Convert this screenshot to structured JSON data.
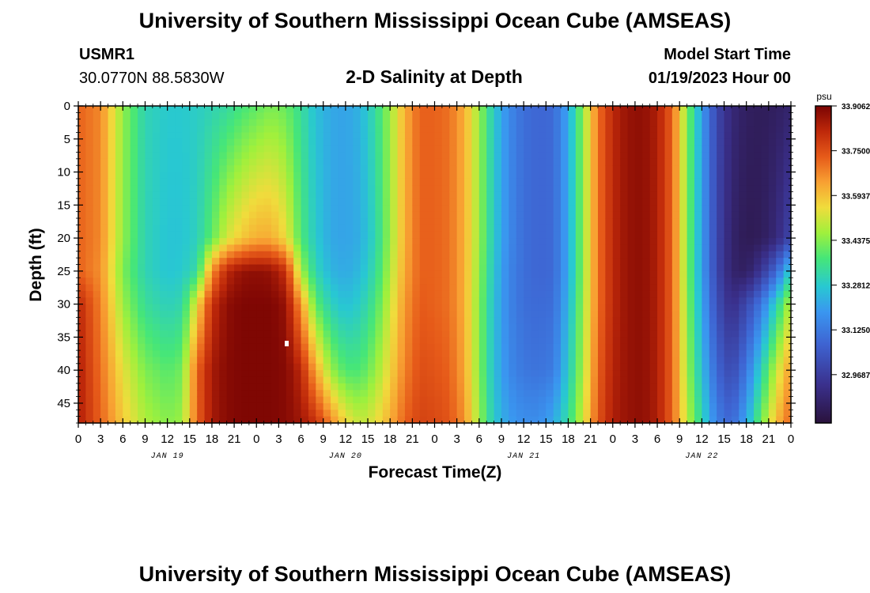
{
  "page": {
    "title": "University of Southern Mississippi Ocean Cube (AMSEAS)",
    "station_id": "USMR1",
    "coordinates": "30.0770N  88.5830W",
    "plot_title": "2-D Salinity at Depth",
    "model_start_label": "Model Start Time",
    "model_start_value": "01/19/2023 Hour 00",
    "footer_title": "University of Southern Mississippi Ocean Cube (AMSEAS)"
  },
  "chart_data": {
    "type": "heatmap",
    "title": "2-D Salinity at Depth",
    "xlabel": "Forecast Time(Z)",
    "ylabel": "Depth (ft)",
    "x_hours_range": [
      0,
      96
    ],
    "ylim": [
      0,
      48
    ],
    "y_ticks": [
      "0",
      "5",
      "10",
      "15",
      "20",
      "25",
      "30",
      "35",
      "40",
      "45"
    ],
    "x_tick_labels": [
      "0",
      "3",
      "6",
      "9",
      "12",
      "15",
      "18",
      "21",
      "0",
      "3",
      "6",
      "9",
      "12",
      "15",
      "18",
      "21",
      "0",
      "3",
      "6",
      "9",
      "12",
      "15",
      "18",
      "21",
      "0",
      "3",
      "6",
      "9",
      "12",
      "15",
      "18",
      "21",
      "0"
    ],
    "day_labels": [
      {
        "label": "JAN 19",
        "hour": 12
      },
      {
        "label": "JAN 20",
        "hour": 36
      },
      {
        "label": "JAN 21",
        "hour": 60
      },
      {
        "label": "JAN 22",
        "hour": 84
      }
    ],
    "colorbar": {
      "unit": "psu",
      "min": 32.8,
      "max": 33.90625,
      "tick_values": [
        33.90625,
        33.75,
        33.59375,
        33.4375,
        33.28125,
        33.125,
        32.96875
      ],
      "tick_labels": [
        "33.90625",
        "33.75000",
        "33.59375",
        "33.43750",
        "33.28125",
        "33.12500",
        "32.96875"
      ]
    },
    "salinity_profiles": {
      "depths_ft": [
        0,
        20,
        25,
        30,
        40,
        48
      ],
      "columns": [
        {
          "hour": 0,
          "psu": [
            33.72,
            33.72,
            33.72,
            33.82,
            33.84,
            33.84
          ]
        },
        {
          "hour": 3,
          "psu": [
            33.67,
            33.67,
            33.66,
            33.68,
            33.7,
            33.72
          ]
        },
        {
          "hour": 6,
          "psu": [
            33.45,
            33.45,
            33.43,
            33.46,
            33.54,
            33.58
          ]
        },
        {
          "hour": 9,
          "psu": [
            33.31,
            33.31,
            33.31,
            33.34,
            33.43,
            33.48
          ]
        },
        {
          "hour": 12,
          "psu": [
            33.28,
            33.27,
            33.27,
            33.3,
            33.39,
            33.44
          ]
        },
        {
          "hour": 14,
          "psu": [
            33.28,
            33.27,
            33.28,
            33.32,
            33.42,
            33.46
          ]
        },
        {
          "hour": 16,
          "psu": [
            33.29,
            33.3,
            33.33,
            33.55,
            33.72,
            33.72
          ]
        },
        {
          "hour": 18,
          "psu": [
            33.31,
            33.4,
            33.66,
            33.8,
            33.85,
            33.85
          ]
        },
        {
          "hour": 20,
          "psu": [
            33.33,
            33.52,
            33.82,
            33.88,
            33.89,
            33.89
          ]
        },
        {
          "hour": 22,
          "psu": [
            33.37,
            33.58,
            33.87,
            33.9,
            33.9,
            33.9
          ]
        },
        {
          "hour": 24,
          "psu": [
            33.4,
            33.62,
            33.88,
            33.9,
            33.9,
            33.9
          ]
        },
        {
          "hour": 26,
          "psu": [
            33.43,
            33.62,
            33.87,
            33.9,
            33.9,
            33.9
          ]
        },
        {
          "hour": 28,
          "psu": [
            33.41,
            33.55,
            33.8,
            33.87,
            33.89,
            33.89
          ]
        },
        {
          "hour": 30,
          "psu": [
            33.34,
            33.38,
            33.47,
            33.65,
            33.82,
            33.86
          ]
        },
        {
          "hour": 32,
          "psu": [
            33.26,
            33.28,
            33.31,
            33.4,
            33.63,
            33.8
          ]
        },
        {
          "hour": 34,
          "psu": [
            33.22,
            33.22,
            33.24,
            33.3,
            33.46,
            33.68
          ]
        },
        {
          "hour": 36,
          "psu": [
            33.21,
            33.21,
            33.22,
            33.26,
            33.38,
            33.56
          ]
        },
        {
          "hour": 38,
          "psu": [
            33.24,
            33.23,
            33.25,
            33.29,
            33.38,
            33.5
          ]
        },
        {
          "hour": 40,
          "psu": [
            33.33,
            33.31,
            33.33,
            33.37,
            33.45,
            33.54
          ]
        },
        {
          "hour": 42,
          "psu": [
            33.46,
            33.46,
            33.48,
            33.51,
            33.56,
            33.62
          ]
        },
        {
          "hour": 44,
          "psu": [
            33.62,
            33.62,
            33.63,
            33.65,
            33.68,
            33.72
          ]
        },
        {
          "hour": 46,
          "psu": [
            33.72,
            33.72,
            33.72,
            33.73,
            33.75,
            33.77
          ]
        },
        {
          "hour": 48,
          "psu": [
            33.72,
            33.72,
            33.72,
            33.72,
            33.74,
            33.76
          ]
        },
        {
          "hour": 50,
          "psu": [
            33.7,
            33.7,
            33.7,
            33.7,
            33.72,
            33.74
          ]
        },
        {
          "hour": 52,
          "psu": [
            33.62,
            33.62,
            33.62,
            33.62,
            33.63,
            33.66
          ]
        },
        {
          "hour": 54,
          "psu": [
            33.46,
            33.46,
            33.45,
            33.44,
            33.44,
            33.46
          ]
        },
        {
          "hour": 56,
          "psu": [
            33.28,
            33.28,
            33.27,
            33.26,
            33.26,
            33.28
          ]
        },
        {
          "hour": 58,
          "psu": [
            33.16,
            33.16,
            33.15,
            33.15,
            33.16,
            33.2
          ]
        },
        {
          "hour": 60,
          "psu": [
            33.1,
            33.1,
            33.1,
            33.1,
            33.12,
            33.17
          ]
        },
        {
          "hour": 62,
          "psu": [
            33.08,
            33.08,
            33.08,
            33.09,
            33.11,
            33.17
          ]
        },
        {
          "hour": 64,
          "psu": [
            33.09,
            33.09,
            33.09,
            33.1,
            33.13,
            33.22
          ]
        },
        {
          "hour": 66,
          "psu": [
            33.22,
            33.22,
            33.22,
            33.24,
            33.28,
            33.34
          ]
        },
        {
          "hour": 68,
          "psu": [
            33.45,
            33.45,
            33.45,
            33.46,
            33.48,
            33.52
          ]
        },
        {
          "hour": 70,
          "psu": [
            33.7,
            33.7,
            33.7,
            33.7,
            33.72,
            33.74
          ]
        },
        {
          "hour": 72,
          "psu": [
            33.82,
            33.82,
            33.82,
            33.82,
            33.83,
            33.84
          ]
        },
        {
          "hour": 74,
          "psu": [
            33.87,
            33.87,
            33.87,
            33.87,
            33.87,
            33.87
          ]
        },
        {
          "hour": 76,
          "psu": [
            33.88,
            33.88,
            33.88,
            33.88,
            33.88,
            33.88
          ]
        },
        {
          "hour": 78,
          "psu": [
            33.84,
            33.84,
            33.84,
            33.84,
            33.84,
            33.84
          ]
        },
        {
          "hour": 80,
          "psu": [
            33.72,
            33.72,
            33.72,
            33.72,
            33.72,
            33.72
          ]
        },
        {
          "hour": 82,
          "psu": [
            33.44,
            33.44,
            33.44,
            33.45,
            33.47,
            33.5
          ]
        },
        {
          "hour": 84,
          "psu": [
            33.2,
            33.2,
            33.2,
            33.22,
            33.26,
            33.32
          ]
        },
        {
          "hour": 86,
          "psu": [
            33.0,
            33.0,
            33.0,
            33.02,
            33.08,
            33.14
          ]
        },
        {
          "hour": 88,
          "psu": [
            32.9,
            32.88,
            32.88,
            32.92,
            33.0,
            33.08
          ]
        },
        {
          "hour": 90,
          "psu": [
            32.86,
            32.84,
            32.86,
            33.0,
            33.12,
            33.22
          ]
        },
        {
          "hour": 92,
          "psu": [
            32.85,
            32.85,
            32.95,
            33.12,
            33.3,
            33.42
          ]
        },
        {
          "hour": 94,
          "psu": [
            32.86,
            32.9,
            33.08,
            33.3,
            33.5,
            33.6
          ]
        },
        {
          "hour": 96,
          "psu": [
            32.88,
            33.0,
            33.3,
            33.5,
            33.65,
            33.72
          ]
        }
      ]
    }
  },
  "colors": {
    "background": "#ffffff",
    "axis": "#000000",
    "marker": "#ffffff"
  }
}
